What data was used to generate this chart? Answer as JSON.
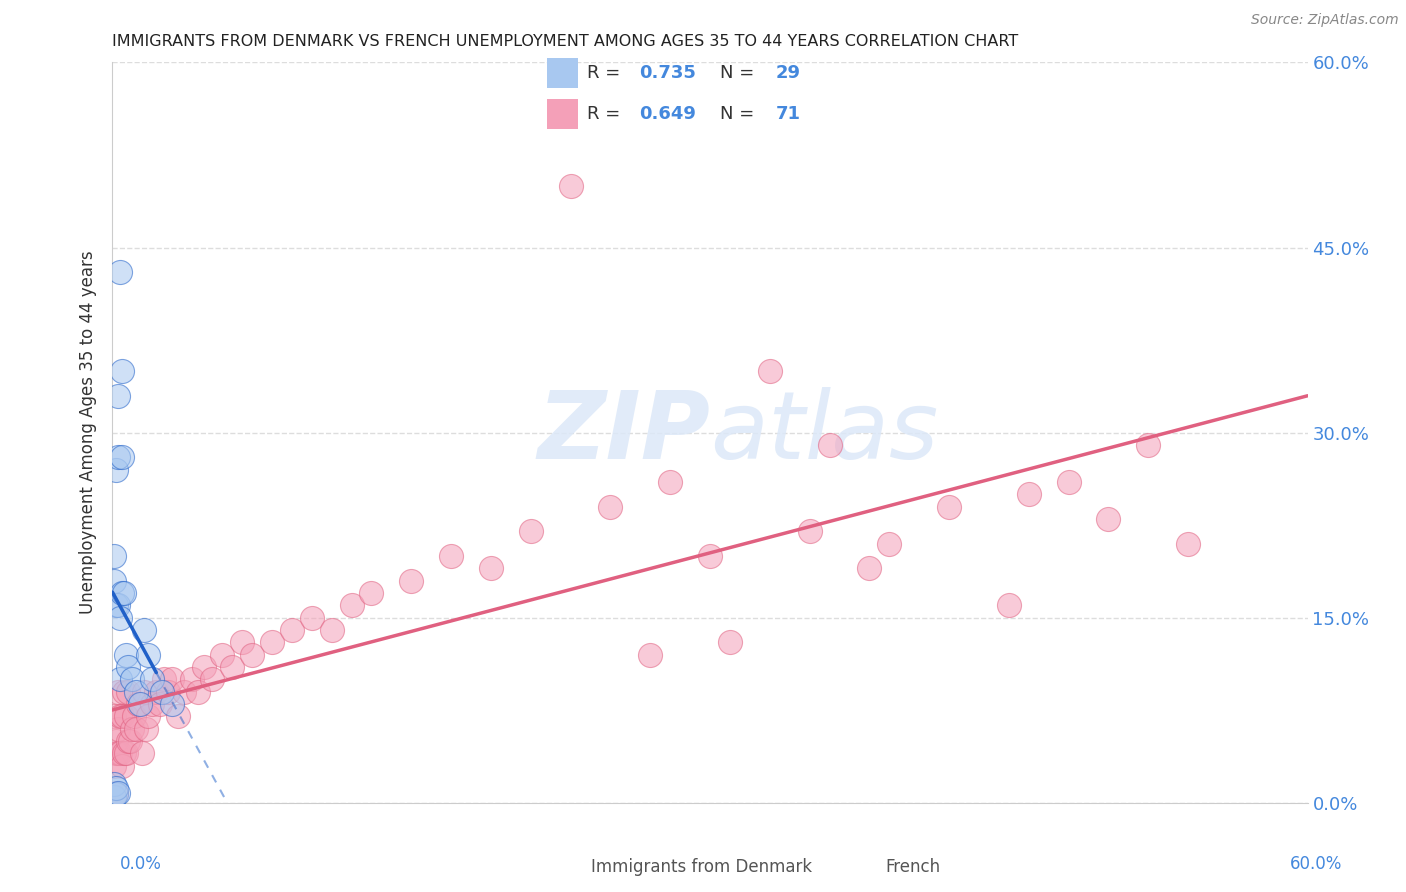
{
  "title": "IMMIGRANTS FROM DENMARK VS FRENCH UNEMPLOYMENT AMONG AGES 35 TO 44 YEARS CORRELATION CHART",
  "source": "Source: ZipAtlas.com",
  "ylabel": "Unemployment Among Ages 35 to 44 years",
  "ytick_values": [
    0.0,
    0.15,
    0.3,
    0.45,
    0.6
  ],
  "ytick_labels": [
    "0.0%",
    "15.0%",
    "30.0%",
    "45.0%",
    "60.0%"
  ],
  "xlim": [
    0.0,
    0.6
  ],
  "ylim": [
    0.0,
    0.6
  ],
  "blue_color": "#A8C8F0",
  "pink_color": "#F4A0B8",
  "blue_line_color": "#2060C8",
  "pink_line_color": "#E06080",
  "watermark": "ZIPAtlas",
  "background_color": "#FFFFFF",
  "grid_color": "#DDDDDD",
  "legend_R_color": "#4488DD",
  "legend_N_color": "#4488DD",
  "blue_scatter_x": [
    0.001,
    0.001,
    0.001,
    0.001,
    0.002,
    0.002,
    0.002,
    0.002,
    0.003,
    0.003,
    0.003,
    0.003,
    0.004,
    0.004,
    0.004,
    0.005,
    0.005,
    0.005,
    0.006,
    0.007,
    0.008,
    0.01,
    0.012,
    0.014,
    0.016,
    0.018,
    0.02,
    0.025,
    0.03
  ],
  "blue_scatter_y": [
    0.005,
    0.015,
    0.18,
    0.2,
    0.007,
    0.012,
    0.16,
    0.27,
    0.008,
    0.16,
    0.28,
    0.33,
    0.1,
    0.15,
    0.43,
    0.17,
    0.28,
    0.35,
    0.17,
    0.12,
    0.11,
    0.1,
    0.09,
    0.08,
    0.14,
    0.12,
    0.1,
    0.09,
    0.08
  ],
  "pink_scatter_x": [
    0.001,
    0.001,
    0.002,
    0.002,
    0.002,
    0.003,
    0.003,
    0.003,
    0.004,
    0.004,
    0.005,
    0.005,
    0.006,
    0.006,
    0.007,
    0.007,
    0.008,
    0.008,
    0.009,
    0.01,
    0.011,
    0.012,
    0.013,
    0.015,
    0.016,
    0.017,
    0.018,
    0.02,
    0.022,
    0.024,
    0.026,
    0.028,
    0.03,
    0.033,
    0.036,
    0.04,
    0.043,
    0.046,
    0.05,
    0.055,
    0.06,
    0.065,
    0.07,
    0.08,
    0.09,
    0.1,
    0.11,
    0.12,
    0.13,
    0.15,
    0.17,
    0.19,
    0.21,
    0.23,
    0.25,
    0.28,
    0.3,
    0.33,
    0.36,
    0.39,
    0.42,
    0.45,
    0.48,
    0.5,
    0.52,
    0.54,
    0.46,
    0.38,
    0.35,
    0.31,
    0.27
  ],
  "pink_scatter_y": [
    0.03,
    0.07,
    0.04,
    0.05,
    0.008,
    0.04,
    0.06,
    0.09,
    0.04,
    0.07,
    0.03,
    0.07,
    0.04,
    0.09,
    0.04,
    0.07,
    0.05,
    0.09,
    0.05,
    0.06,
    0.07,
    0.06,
    0.08,
    0.04,
    0.09,
    0.06,
    0.07,
    0.08,
    0.09,
    0.08,
    0.1,
    0.09,
    0.1,
    0.07,
    0.09,
    0.1,
    0.09,
    0.11,
    0.1,
    0.12,
    0.11,
    0.13,
    0.12,
    0.13,
    0.14,
    0.15,
    0.14,
    0.16,
    0.17,
    0.18,
    0.2,
    0.19,
    0.22,
    0.5,
    0.24,
    0.26,
    0.2,
    0.35,
    0.29,
    0.21,
    0.24,
    0.16,
    0.26,
    0.23,
    0.29,
    0.21,
    0.25,
    0.19,
    0.22,
    0.13,
    0.12
  ]
}
